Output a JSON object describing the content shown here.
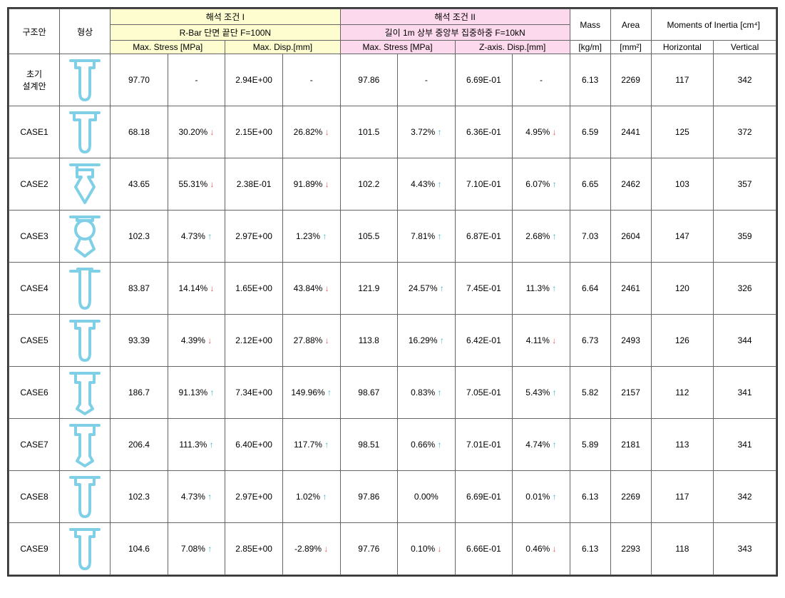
{
  "colors": {
    "header_yellow": "#fdfdd0",
    "header_pink": "#fdd9ed",
    "shape_stroke": "#7fd0e6",
    "arrow_up": "#3db5c7",
    "arrow_down": "#e85a5a",
    "border": "#666666"
  },
  "headers": {
    "col_structure": "구조안",
    "col_shape": "형상",
    "condition1_title": "해석 조건 I",
    "condition1_sub": "R-Bar 단면 끝단 F=100N",
    "condition2_title": "해석 조건 II",
    "condition2_sub": "길이 1m 상부 중앙부 집중하중 F=10kN",
    "max_stress": "Max. Stress [MPa]",
    "max_disp": "Max. Disp.[mm]",
    "z_disp": "Z-axis. Disp.[mm]",
    "mass": "Mass",
    "mass_unit": "[kg/m]",
    "area": "Area",
    "area_unit": "[mm²]",
    "moi": "Moments of Inertia [cm⁴]",
    "moi_h": "Horizontal",
    "moi_v": "Vertical"
  },
  "rows": [
    {
      "label": "초기\n설계안",
      "c1_stress": "97.70",
      "c1_stress_pct": "-",
      "c1_disp": "2.94E+00",
      "c1_disp_pct": "-",
      "c2_stress": "97.86",
      "c2_stress_pct": "-",
      "c2_zdisp": "6.69E-01",
      "c2_zdisp_pct": "-",
      "mass": "6.13",
      "area": "2269",
      "moi_h": "117",
      "moi_v": "342"
    },
    {
      "label": "CASE1",
      "c1_stress": "68.18",
      "c1_stress_pct": "30.20%",
      "c1_stress_dir": "down",
      "c1_disp": "2.15E+00",
      "c1_disp_pct": "26.82%",
      "c1_disp_dir": "down",
      "c2_stress": "101.5",
      "c2_stress_pct": "3.72%",
      "c2_stress_dir": "up",
      "c2_zdisp": "6.36E-01",
      "c2_zdisp_pct": "4.95%",
      "c2_zdisp_dir": "down",
      "mass": "6.59",
      "area": "2441",
      "moi_h": "125",
      "moi_v": "372"
    },
    {
      "label": "CASE2",
      "c1_stress": "43.65",
      "c1_stress_pct": "55.31%",
      "c1_stress_dir": "down",
      "c1_disp": "2.38E-01",
      "c1_disp_pct": "91.89%",
      "c1_disp_dir": "down",
      "c2_stress": "102.2",
      "c2_stress_pct": "4.43%",
      "c2_stress_dir": "up",
      "c2_zdisp": "7.10E-01",
      "c2_zdisp_pct": "6.07%",
      "c2_zdisp_dir": "up",
      "mass": "6.65",
      "area": "2462",
      "moi_h": "103",
      "moi_v": "357"
    },
    {
      "label": "CASE3",
      "c1_stress": "102.3",
      "c1_stress_pct": "4.73%",
      "c1_stress_dir": "up",
      "c1_disp": "2.97E+00",
      "c1_disp_pct": "1.23%",
      "c1_disp_dir": "up",
      "c2_stress": "105.5",
      "c2_stress_pct": "7.81%",
      "c2_stress_dir": "up",
      "c2_zdisp": "6.87E-01",
      "c2_zdisp_pct": "2.68%",
      "c2_zdisp_dir": "up",
      "mass": "7.03",
      "area": "2604",
      "moi_h": "147",
      "moi_v": "359"
    },
    {
      "label": "CASE4",
      "c1_stress": "83.87",
      "c1_stress_pct": "14.14%",
      "c1_stress_dir": "down",
      "c1_disp": "1.65E+00",
      "c1_disp_pct": "43.84%",
      "c1_disp_dir": "down",
      "c2_stress": "121.9",
      "c2_stress_pct": "24.57%",
      "c2_stress_dir": "up",
      "c2_zdisp": "7.45E-01",
      "c2_zdisp_pct": "11.3%",
      "c2_zdisp_dir": "up",
      "mass": "6.64",
      "area": "2461",
      "moi_h": "120",
      "moi_v": "326"
    },
    {
      "label": "CASE5",
      "c1_stress": "93.39",
      "c1_stress_pct": "4.39%",
      "c1_stress_dir": "down",
      "c1_disp": "2.12E+00",
      "c1_disp_pct": "27.88%",
      "c1_disp_dir": "down",
      "c2_stress": "113.8",
      "c2_stress_pct": "16.29%",
      "c2_stress_dir": "up",
      "c2_zdisp": "6.42E-01",
      "c2_zdisp_pct": "4.11%",
      "c2_zdisp_dir": "down",
      "mass": "6.73",
      "area": "2493",
      "moi_h": "126",
      "moi_v": "344"
    },
    {
      "label": "CASE6",
      "c1_stress": "186.7",
      "c1_stress_pct": "91.13%",
      "c1_stress_dir": "up",
      "c1_disp": "7.34E+00",
      "c1_disp_pct": "149.96%",
      "c1_disp_dir": "up",
      "c2_stress": "98.67",
      "c2_stress_pct": "0.83%",
      "c2_stress_dir": "up",
      "c2_zdisp": "7.05E-01",
      "c2_zdisp_pct": "5.43%",
      "c2_zdisp_dir": "up",
      "mass": "5.82",
      "area": "2157",
      "moi_h": "112",
      "moi_v": "341"
    },
    {
      "label": "CASE7",
      "c1_stress": "206.4",
      "c1_stress_pct": "111.3%",
      "c1_stress_dir": "up",
      "c1_disp": "6.40E+00",
      "c1_disp_pct": "117.7%",
      "c1_disp_dir": "up",
      "c2_stress": "98.51",
      "c2_stress_pct": "0.66%",
      "c2_stress_dir": "up",
      "c2_zdisp": "7.01E-01",
      "c2_zdisp_pct": "4.74%",
      "c2_zdisp_dir": "up",
      "mass": "5.89",
      "area": "2181",
      "moi_h": "113",
      "moi_v": "341"
    },
    {
      "label": "CASE8",
      "c1_stress": "102.3",
      "c1_stress_pct": "4.73%",
      "c1_stress_dir": "up",
      "c1_disp": "2.97E+00",
      "c1_disp_pct": "1.02%",
      "c1_disp_dir": "up",
      "c2_stress": "97.86",
      "c2_stress_pct": "0.00%",
      "c2_zdisp": "6.69E-01",
      "c2_zdisp_pct": "0.01%",
      "c2_zdisp_dir": "up",
      "mass": "6.13",
      "area": "2269",
      "moi_h": "117",
      "moi_v": "342"
    },
    {
      "label": "CASE9",
      "c1_stress": "104.6",
      "c1_stress_pct": "7.08%",
      "c1_stress_dir": "up",
      "c1_disp": "2.85E+00",
      "c1_disp_pct": "-2.89%",
      "c1_disp_dir": "down",
      "c2_stress": "97.76",
      "c2_stress_pct": "0.10%",
      "c2_stress_dir": "down",
      "c2_zdisp": "6.66E-01",
      "c2_zdisp_pct": "0.46%",
      "c2_zdisp_dir": "down",
      "mass": "6.13",
      "area": "2293",
      "moi_h": "118",
      "moi_v": "343"
    }
  ],
  "shape_svg_paths": [
    "M5 5 H45 M12 5 V15 H18 V50 Q18 60 25 60 Q32 60 32 50 V15 H38 V5",
    "M5 5 H45 M10 5 V15 H18 V50 Q18 60 25 60 Q32 60 32 50 V15 H40 V5",
    "M5 5 H45 M14 5 V12 H36 V22 H30 L38 36 L25 58 L12 36 L20 22 H14 V5",
    "M5 5 H45 M14 5 V10 H36 V5 M25 10 A13 13 0 1 0 25 36 A13 13 0 1 0 25 10 M18 36 L12 50 L25 60 L38 50 L32 36",
    "M5 8 H15 V5 H35 V8 H45 M18 8 V48 Q18 60 25 60 Q32 60 32 48 V8",
    "M5 5 H45 M12 5 V15 H18 V50 Q18 60 25 60 Q32 60 32 50 V15 H38 V5",
    "M5 5 H45 M12 5 V18 H18 V48 L14 55 L25 62 L36 55 L32 48 V18 H38 V5",
    "M5 5 H45 M12 5 V18 H18 V48 L14 55 L25 62 L36 55 L32 48 V18 H38 V5",
    "M5 5 H45 M12 5 V15 H18 V50 Q18 60 25 60 Q32 60 32 50 V15 H38 V5",
    "M5 5 H45 M12 5 V15 H18 V50 Q18 60 25 60 Q32 60 32 50 V15 H38 V5"
  ]
}
